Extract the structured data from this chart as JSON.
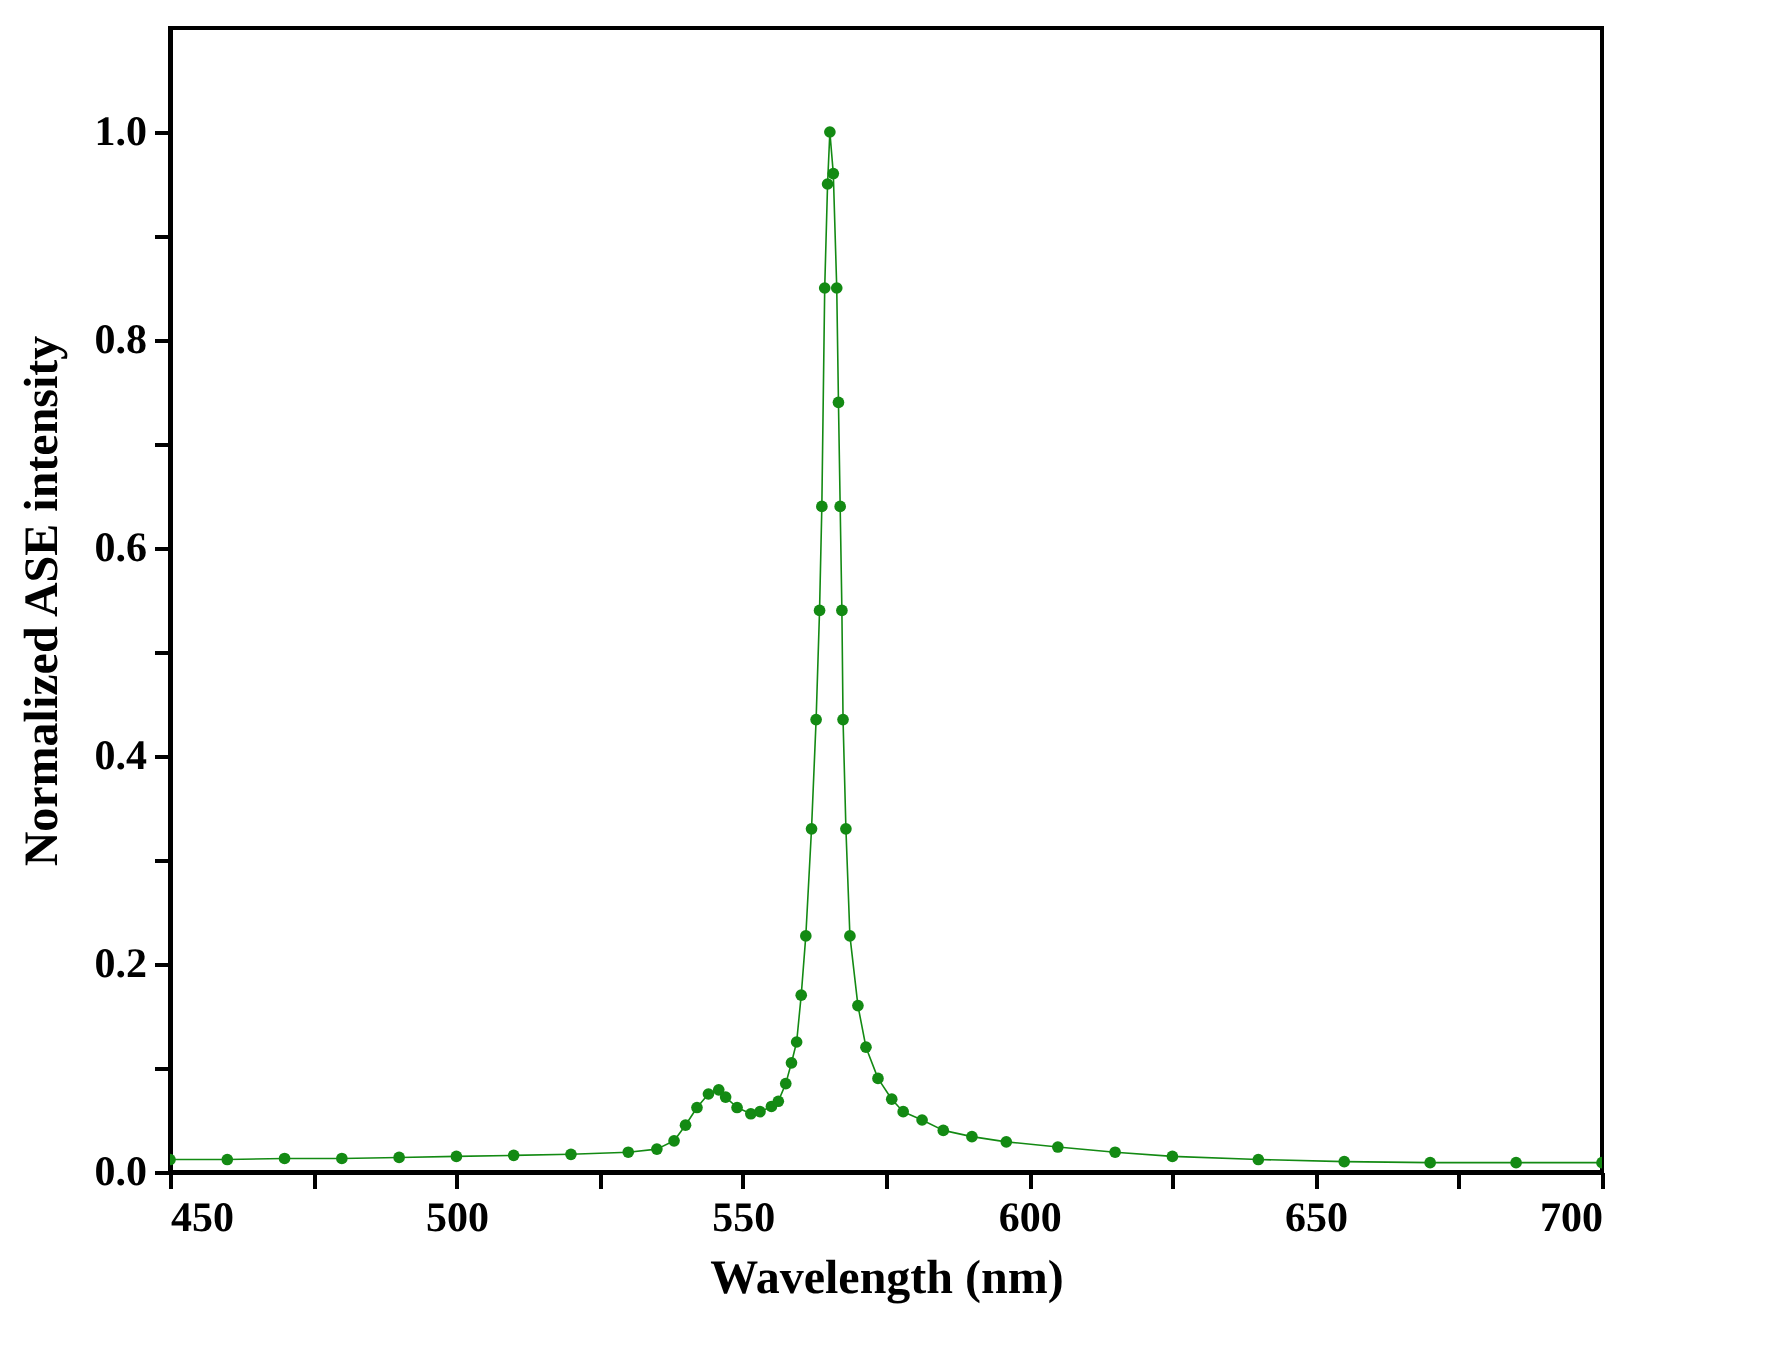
{
  "chart_data": {
    "type": "line",
    "xlabel": "Wavelength (nm)",
    "ylabel": "Normalized ASE intensity",
    "xlim": [
      450,
      700
    ],
    "xticks": [
      450,
      {
        "value": 475,
        "label": null
      },
      500,
      {
        "value": 525,
        "label": null
      },
      550,
      {
        "value": 575,
        "label": null
      },
      600,
      {
        "value": 625,
        "label": null
      },
      650,
      {
        "value": 675,
        "label": null
      },
      700
    ],
    "ylim": [
      0,
      1.1
    ],
    "yticks": [
      {
        "value": 0,
        "label": "0.0"
      },
      {
        "value": 0.1,
        "label": null
      },
      0.2,
      {
        "value": 0.3,
        "label": null
      },
      0.4,
      {
        "value": 0.5,
        "label": null
      },
      0.6,
      {
        "value": 0.7,
        "label": null
      },
      0.8,
      {
        "value": 0.9,
        "label": null
      },
      {
        "value": 1.0,
        "label": "1.0"
      }
    ],
    "grid": false,
    "legend": false,
    "marker": "circle",
    "line_style": "solid",
    "series": [
      {
        "color": "#138a13",
        "x": [
          450,
          460,
          470,
          480,
          490,
          500,
          510,
          520,
          530,
          535,
          538,
          540,
          542,
          544,
          545.8,
          547,
          549,
          551.4,
          553,
          555,
          556.2,
          557.5,
          558.5,
          559.4,
          560.2,
          561,
          562,
          562.8,
          563.4,
          563.8,
          564.3,
          564.8,
          565.2,
          565.8,
          566.4,
          566.7,
          567,
          567.3,
          567.5,
          568,
          568.7,
          570.1,
          571.5,
          573.6,
          576,
          578,
          581.3,
          585,
          590,
          596,
          605,
          615,
          625,
          640,
          655,
          670,
          685,
          700
        ],
        "values": [
          0.012,
          0.012,
          0.013,
          0.013,
          0.014,
          0.015,
          0.016,
          0.017,
          0.019,
          0.022,
          0.03,
          0.045,
          0.062,
          0.075,
          0.079,
          0.072,
          0.062,
          0.056,
          0.058,
          0.063,
          0.068,
          0.085,
          0.105,
          0.125,
          0.17,
          0.227,
          0.33,
          0.435,
          0.54,
          0.64,
          0.85,
          0.95,
          1.0,
          0.96,
          0.85,
          0.74,
          0.64,
          0.54,
          0.435,
          0.33,
          0.227,
          0.16,
          0.12,
          0.09,
          0.07,
          0.058,
          0.05,
          0.04,
          0.034,
          0.029,
          0.024,
          0.019,
          0.015,
          0.012,
          0.01,
          0.009,
          0.009,
          0.009
        ]
      }
    ]
  }
}
